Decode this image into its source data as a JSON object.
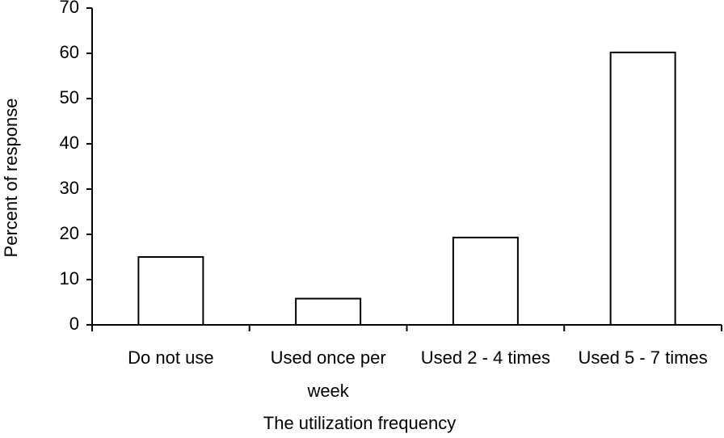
{
  "chart_data": {
    "type": "bar",
    "x_label": "The utilization frequency",
    "y_label": "Percent of response",
    "categories": [
      "Do not use",
      "Used once per week",
      "Used 2 - 4 times",
      "Used 5 - 7 times"
    ],
    "values": [
      15,
      5.8,
      19.3,
      60.2
    ],
    "color": "#ffffff",
    "ylim": [
      0,
      70
    ],
    "yticks": [
      0,
      10,
      20,
      30,
      40,
      50,
      60,
      70
    ]
  }
}
